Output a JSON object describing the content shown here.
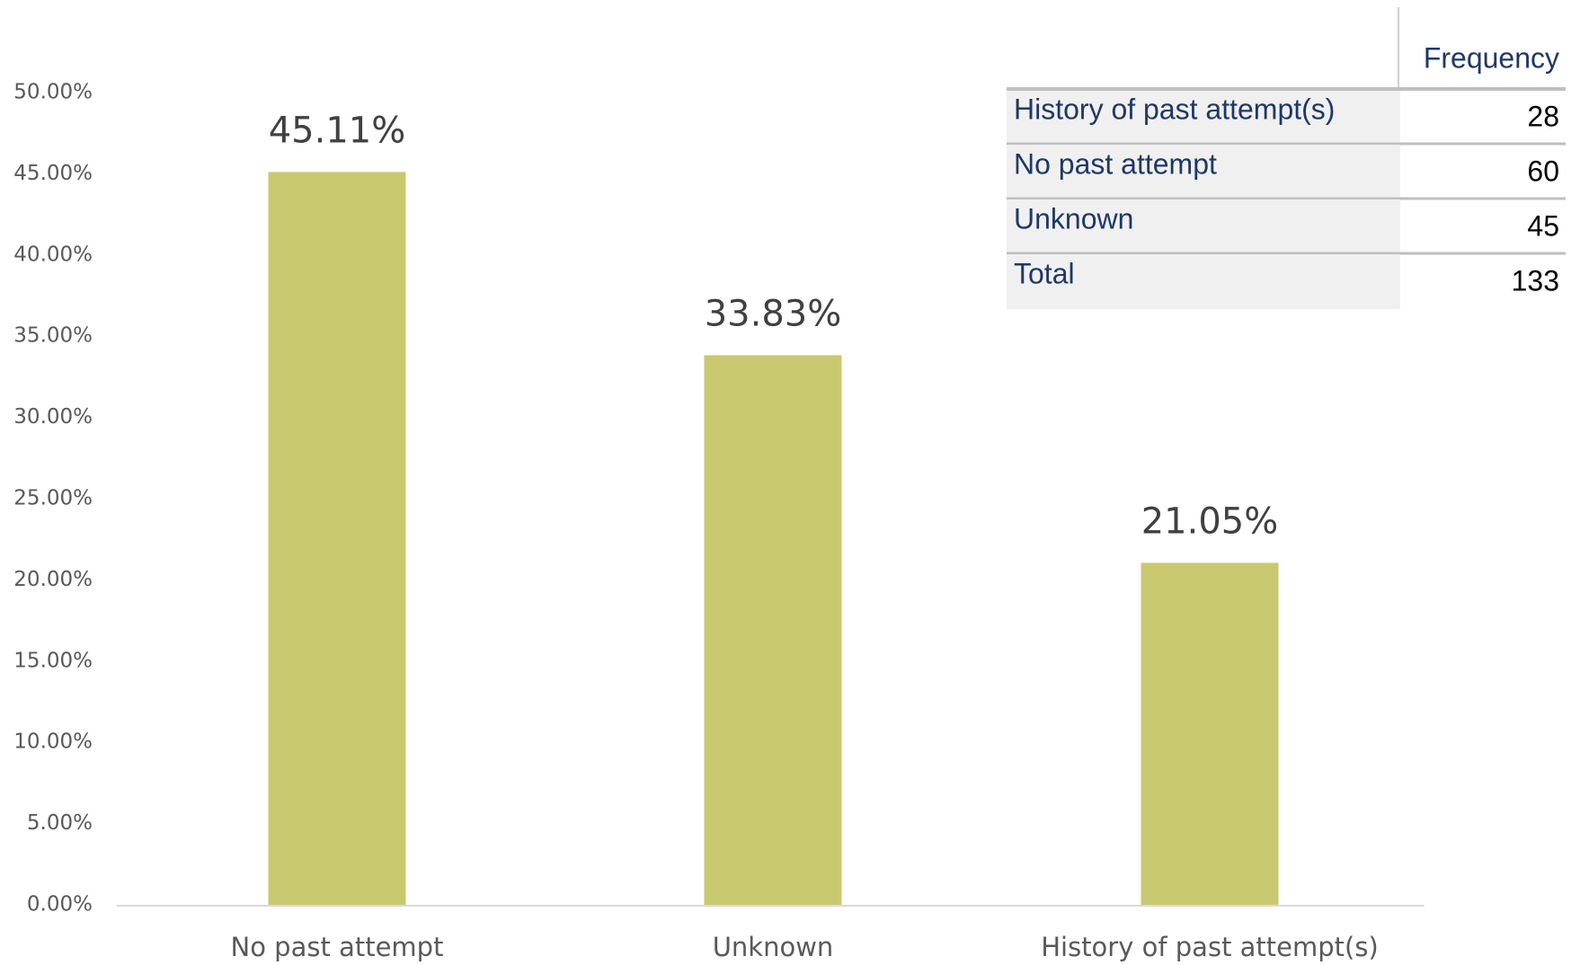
{
  "chart_data": {
    "type": "bar",
    "categories": [
      "No past attempt",
      "Unknown",
      "History of past attempt(s)"
    ],
    "values": [
      45.11,
      33.83,
      21.05
    ],
    "value_labels": [
      "45.11%",
      "33.83%",
      "21.05%"
    ],
    "color": "#c8c96f",
    "ylim": [
      0,
      50
    ],
    "yticks": [
      {
        "value": 0,
        "label": "0.00%"
      },
      {
        "value": 5,
        "label": "5.00%"
      },
      {
        "value": 10,
        "label": "10.00%"
      },
      {
        "value": 15,
        "label": "15.00%"
      },
      {
        "value": 20,
        "label": "20.00%"
      },
      {
        "value": 25,
        "label": "25.00%"
      },
      {
        "value": 30,
        "label": "30.00%"
      },
      {
        "value": 35,
        "label": "35.00%"
      },
      {
        "value": 40,
        "label": "40.00%"
      },
      {
        "value": 45,
        "label": "45.00%"
      },
      {
        "value": 50,
        "label": "50.00%"
      }
    ],
    "grid": false
  },
  "table": {
    "header": "Frequency",
    "rows": [
      [
        "History of past attempt(s)",
        28
      ],
      [
        "No past attempt",
        60
      ],
      [
        "Unknown",
        45
      ],
      [
        "Total",
        133
      ]
    ]
  }
}
